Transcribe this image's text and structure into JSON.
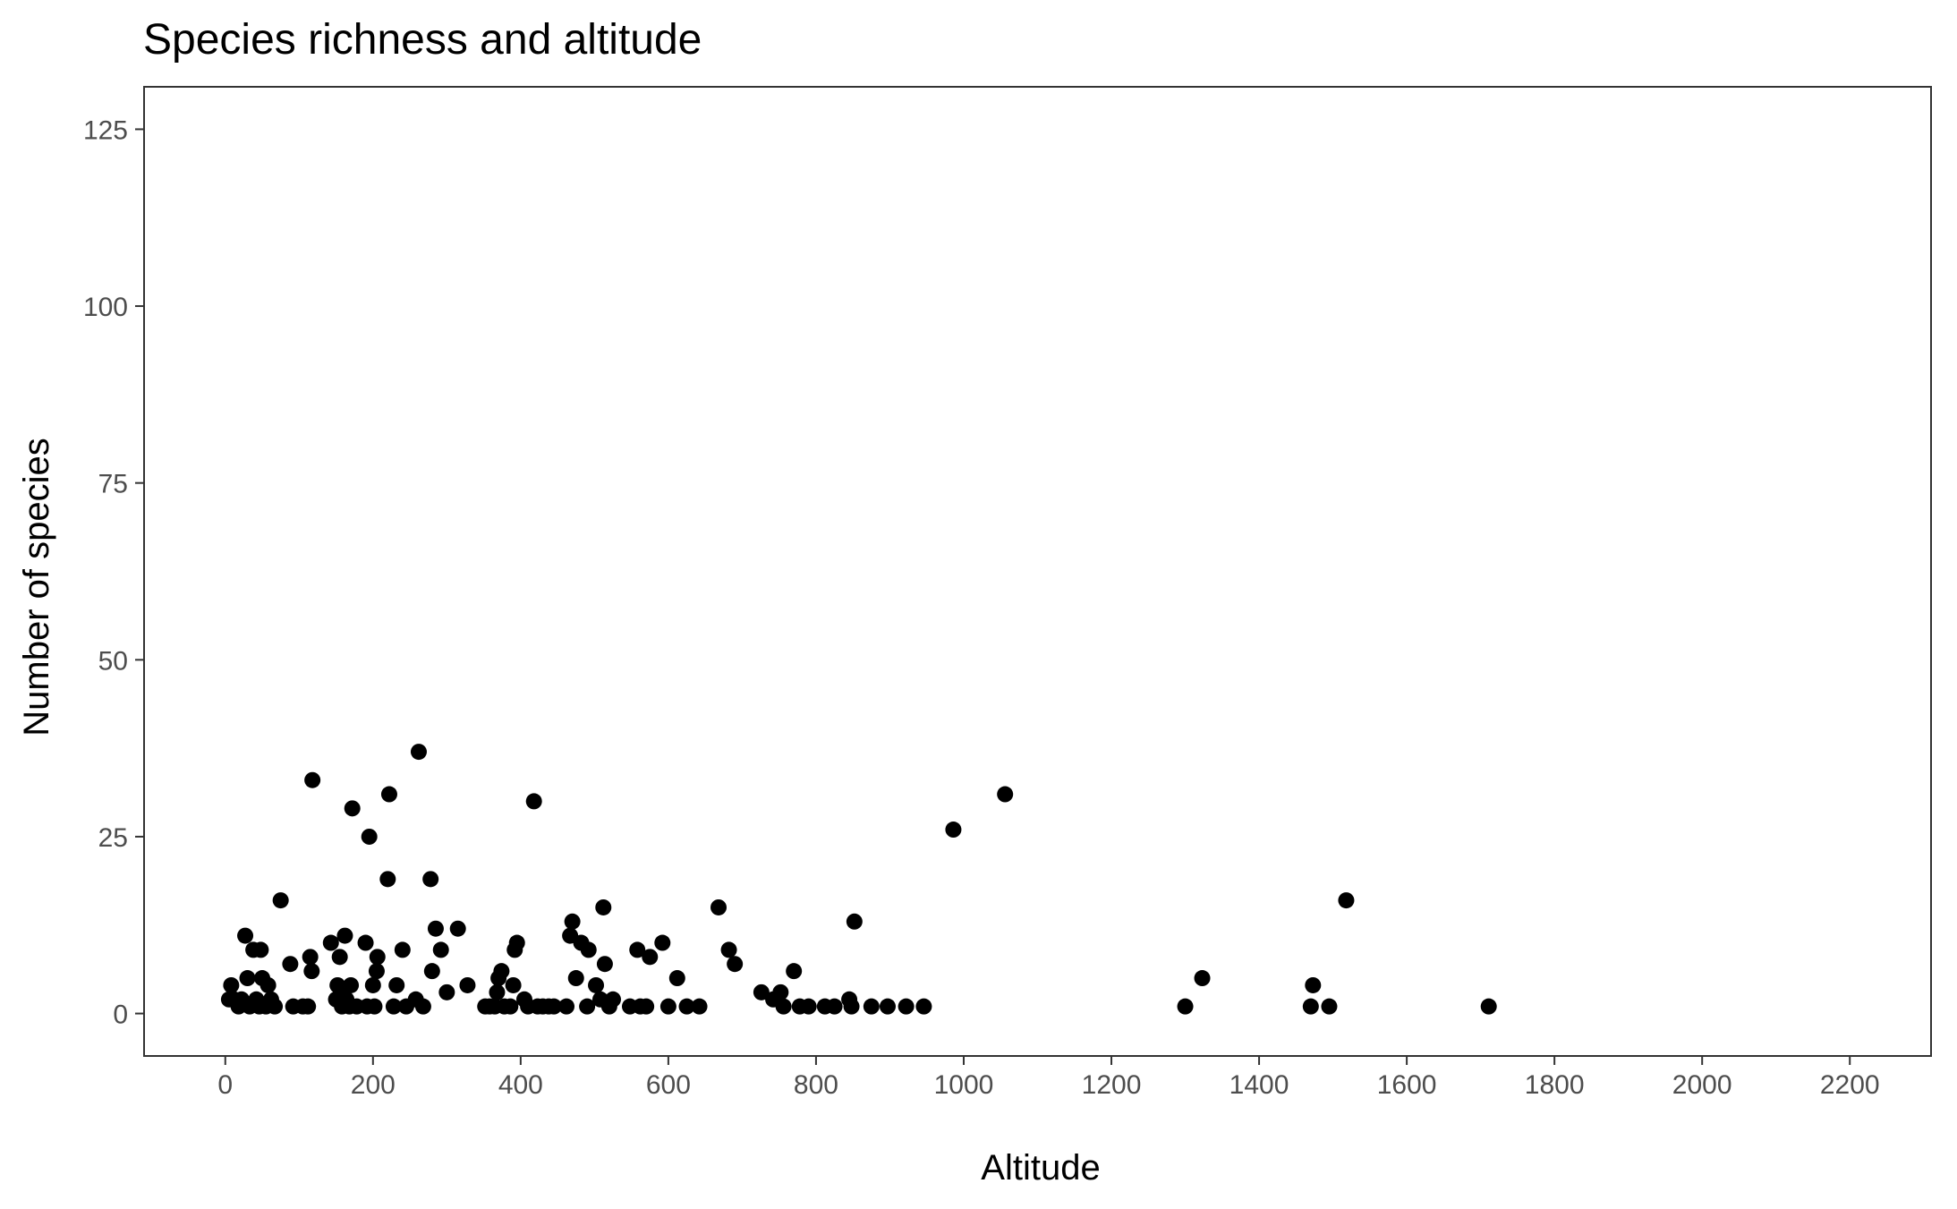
{
  "chart_data": {
    "type": "scatter",
    "title": "Species richness and altitude",
    "xlabel": "Altitude",
    "ylabel": "Number of species",
    "xlim": [
      -110,
      2310
    ],
    "ylim": [
      -6,
      131
    ],
    "x_ticks": [
      0,
      200,
      400,
      600,
      800,
      1000,
      1200,
      1400,
      1600,
      1800,
      2000,
      2200
    ],
    "x_tick_labels": [
      "0",
      "200",
      "400",
      "600",
      "800",
      "1000",
      "1200",
      "1400",
      "1600",
      "1800",
      "2000",
      "2200"
    ],
    "y_ticks": [
      0,
      25,
      50,
      75,
      100,
      125
    ],
    "y_tick_labels": [
      "0",
      "25",
      "50",
      "75",
      "100",
      "125"
    ],
    "grid": false,
    "legend": "none",
    "point_color": "#000000",
    "points": [
      [
        5,
        2
      ],
      [
        8,
        4
      ],
      [
        12,
        2
      ],
      [
        18,
        1
      ],
      [
        22,
        2
      ],
      [
        27,
        11
      ],
      [
        30,
        5
      ],
      [
        33,
        1
      ],
      [
        38,
        9
      ],
      [
        42,
        2
      ],
      [
        46,
        1
      ],
      [
        48,
        9
      ],
      [
        50,
        5
      ],
      [
        55,
        1
      ],
      [
        58,
        4
      ],
      [
        62,
        2
      ],
      [
        67,
        1
      ],
      [
        75,
        16
      ],
      [
        88,
        7
      ],
      [
        92,
        1
      ],
      [
        105,
        1
      ],
      [
        112,
        1
      ],
      [
        115,
        8
      ],
      [
        117,
        6
      ],
      [
        118,
        33
      ],
      [
        143,
        10
      ],
      [
        150,
        2
      ],
      [
        152,
        4
      ],
      [
        155,
        8
      ],
      [
        158,
        1
      ],
      [
        160,
        3
      ],
      [
        162,
        11
      ],
      [
        164,
        2
      ],
      [
        168,
        1
      ],
      [
        170,
        4
      ],
      [
        172,
        29
      ],
      [
        178,
        1
      ],
      [
        190,
        10
      ],
      [
        192,
        1
      ],
      [
        195,
        25
      ],
      [
        200,
        4
      ],
      [
        202,
        1
      ],
      [
        205,
        6
      ],
      [
        206,
        8
      ],
      [
        220,
        19
      ],
      [
        222,
        31
      ],
      [
        228,
        1
      ],
      [
        232,
        4
      ],
      [
        240,
        9
      ],
      [
        245,
        1
      ],
      [
        258,
        2
      ],
      [
        262,
        37
      ],
      [
        268,
        1
      ],
      [
        278,
        19
      ],
      [
        280,
        6
      ],
      [
        285,
        12
      ],
      [
        292,
        9
      ],
      [
        300,
        3
      ],
      [
        315,
        12
      ],
      [
        328,
        4
      ],
      [
        352,
        1
      ],
      [
        358,
        1
      ],
      [
        365,
        1
      ],
      [
        368,
        3
      ],
      [
        370,
        5
      ],
      [
        374,
        6
      ],
      [
        378,
        1
      ],
      [
        386,
        1
      ],
      [
        390,
        4
      ],
      [
        392,
        9
      ],
      [
        395,
        10
      ],
      [
        405,
        2
      ],
      [
        410,
        1
      ],
      [
        418,
        30
      ],
      [
        423,
        1
      ],
      [
        430,
        1
      ],
      [
        438,
        1
      ],
      [
        445,
        1
      ],
      [
        462,
        1
      ],
      [
        467,
        11
      ],
      [
        470,
        13
      ],
      [
        475,
        5
      ],
      [
        482,
        10
      ],
      [
        490,
        1
      ],
      [
        492,
        9
      ],
      [
        502,
        4
      ],
      [
        508,
        2
      ],
      [
        512,
        15
      ],
      [
        514,
        7
      ],
      [
        520,
        1
      ],
      [
        525,
        2
      ],
      [
        548,
        1
      ],
      [
        558,
        9
      ],
      [
        562,
        1
      ],
      [
        570,
        1
      ],
      [
        575,
        8
      ],
      [
        592,
        10
      ],
      [
        600,
        1
      ],
      [
        612,
        5
      ],
      [
        625,
        1
      ],
      [
        642,
        1
      ],
      [
        668,
        15
      ],
      [
        682,
        9
      ],
      [
        690,
        7
      ],
      [
        726,
        3
      ],
      [
        742,
        2
      ],
      [
        752,
        3
      ],
      [
        756,
        1
      ],
      [
        770,
        6
      ],
      [
        778,
        1
      ],
      [
        790,
        1
      ],
      [
        812,
        1
      ],
      [
        825,
        1
      ],
      [
        845,
        2
      ],
      [
        848,
        1
      ],
      [
        852,
        13
      ],
      [
        875,
        1
      ],
      [
        897,
        1
      ],
      [
        922,
        1
      ],
      [
        946,
        1
      ],
      [
        986,
        26
      ],
      [
        1056,
        31
      ],
      [
        1300,
        1
      ],
      [
        1323,
        5
      ],
      [
        1470,
        1
      ],
      [
        1473,
        4
      ],
      [
        1495,
        1
      ],
      [
        1518,
        16
      ],
      [
        1711,
        1
      ]
    ]
  }
}
